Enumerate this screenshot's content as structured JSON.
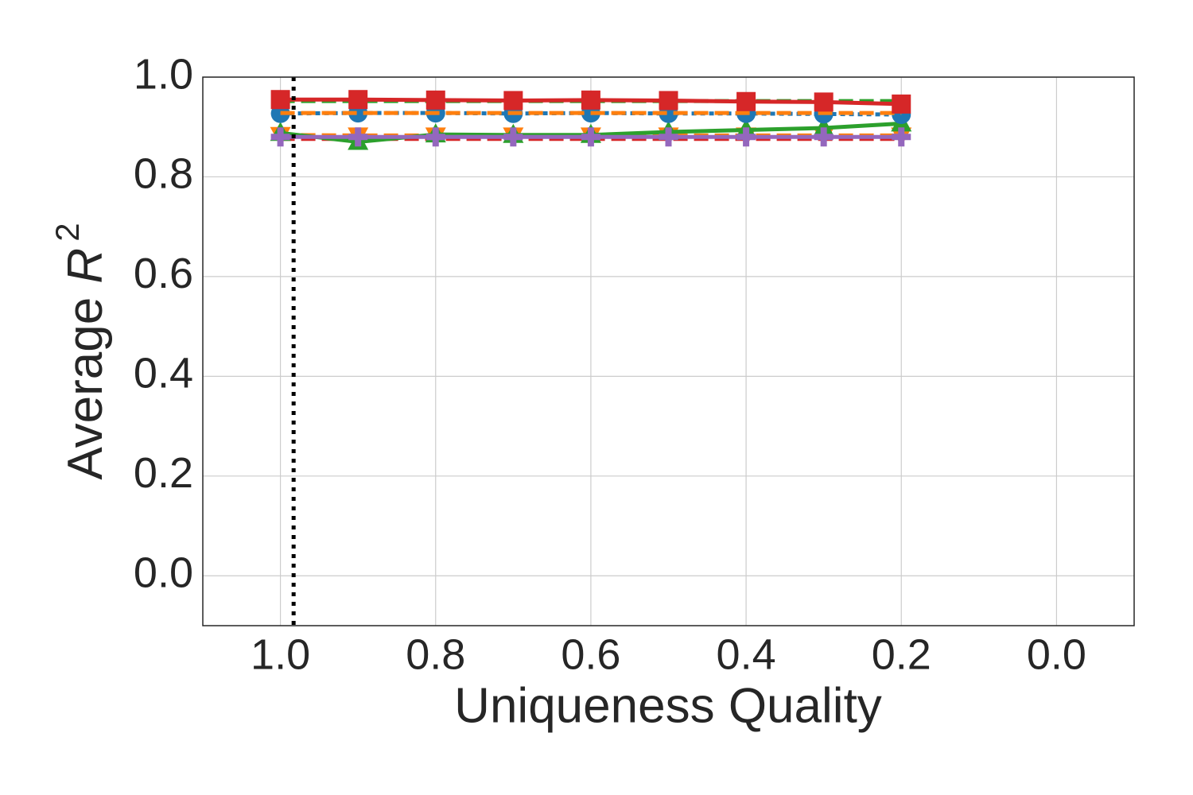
{
  "chart_data": {
    "type": "line",
    "xlabel": "Uniqueness Quality",
    "ylabel": {
      "prefix": "Average ",
      "symbol": "R",
      "exponent": "2"
    },
    "x": [
      1.0,
      0.9,
      0.8,
      0.7,
      0.6,
      0.5,
      0.4,
      0.3,
      0.2
    ],
    "xlim": [
      1.1,
      -0.1
    ],
    "ylim": [
      -0.1,
      1.0
    ],
    "xticks": [
      {
        "value": 1.0,
        "label": "1.0"
      },
      0.8,
      0.6,
      0.4,
      0.2,
      {
        "value": 0.0,
        "label": "0.0"
      }
    ],
    "yticks": [
      {
        "value": 0.0,
        "label": "0.0"
      },
      0.2,
      0.4,
      0.6,
      0.8,
      {
        "value": 1.0,
        "label": "1.0"
      }
    ],
    "grid": true,
    "reference_x": 0.983,
    "series": [
      {
        "color": "#ff7f0e",
        "linestyle": "dashed",
        "marker": "triangle-down",
        "values": [
          0.884,
          0.883,
          0.883,
          0.883,
          0.883,
          0.883,
          0.883,
          0.883,
          0.883
        ]
      },
      {
        "color": "#d62728",
        "linestyle": "dashed",
        "marker": "none",
        "values": [
          0.876,
          0.876,
          0.876,
          0.876,
          0.876,
          0.876,
          0.876,
          0.876,
          0.876
        ]
      },
      {
        "color": "#2ca02c",
        "linestyle": "solid",
        "marker": "triangle-up",
        "values": [
          0.888,
          0.87,
          0.885,
          0.884,
          0.884,
          0.89,
          0.894,
          0.898,
          0.907
        ]
      },
      {
        "color": "#9467bd",
        "linestyle": "solid",
        "marker": "plus",
        "values": [
          0.88,
          0.88,
          0.88,
          0.88,
          0.88,
          0.88,
          0.88,
          0.88,
          0.88
        ]
      },
      {
        "color": "#1f77b4",
        "linestyle": "dotted",
        "marker": "circle",
        "values": [
          0.927,
          0.928,
          0.928,
          0.927,
          0.928,
          0.927,
          0.927,
          0.926,
          0.925
        ]
      },
      {
        "color": "#ff7f0e",
        "linestyle": "dashed",
        "marker": "none",
        "values": [
          0.928,
          0.928,
          0.928,
          0.928,
          0.928,
          0.928,
          0.928,
          0.928,
          0.928
        ]
      },
      {
        "color": "#2ca02c",
        "linestyle": "dashed",
        "marker": "none",
        "values": [
          0.952,
          0.952,
          0.952,
          0.952,
          0.952,
          0.952,
          0.952,
          0.952,
          0.952
        ]
      },
      {
        "color": "#d62728",
        "linestyle": "solid",
        "marker": "square",
        "values": [
          0.955,
          0.955,
          0.954,
          0.953,
          0.954,
          0.953,
          0.951,
          0.95,
          0.946
        ]
      }
    ]
  }
}
